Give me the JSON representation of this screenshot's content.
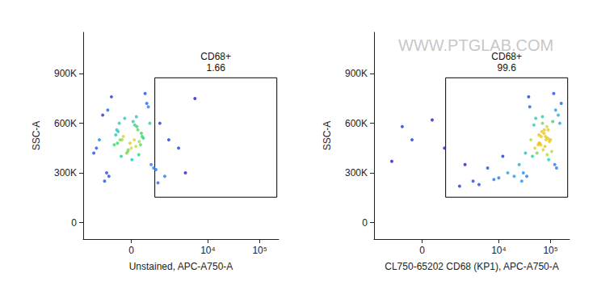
{
  "chart_data": [
    {
      "type": "scatter",
      "x_label": "Unstained, APC-A750-A",
      "y_label": "SSC-A",
      "grid": false,
      "xlim": [
        -2600,
        230000
      ],
      "ylim": [
        -100000,
        1150000
      ],
      "xticks": [
        0,
        {
          "value": 10000,
          "label": "10⁴"
        },
        {
          "value": 100000,
          "label": "10⁵"
        }
      ],
      "yticks": [
        0,
        {
          "value": 300000,
          "label": "300K"
        },
        {
          "value": 600000,
          "label": "600K"
        },
        {
          "value": 900000,
          "label": "900K"
        }
      ],
      "gate": {
        "label": "CD68+",
        "percent": 1.66,
        "x": [
          650,
          212000
        ],
        "y": [
          153000,
          875000
        ]
      },
      "x": [
        -300,
        -150,
        0,
        120,
        -250,
        50,
        -80,
        200,
        -400,
        100,
        -200,
        30,
        150,
        -350,
        -50,
        250,
        -120,
        80,
        -280,
        10,
        180,
        -180,
        60,
        -60,
        220,
        -320,
        140,
        -20,
        90,
        -230,
        -700,
        -900,
        400,
        500,
        -600,
        350,
        -1100,
        600,
        -500,
        450,
        -800,
        300,
        -1300,
        700,
        -650,
        900,
        1500,
        2500,
        5500,
        1200,
        -1500,
        3500,
        800
      ],
      "y": [
        480000,
        520000,
        450000,
        560000,
        600000,
        500000,
        420000,
        540000,
        470000,
        580000,
        400000,
        610000,
        490000,
        530000,
        440000,
        510000,
        630000,
        460000,
        550000,
        380000,
        470000,
        500000,
        590000,
        430000,
        520000,
        560000,
        410000,
        480000,
        640000,
        500000,
        300000,
        650000,
        700000,
        350000,
        280000,
        720000,
        500000,
        330000,
        760000,
        600000,
        250000,
        780000,
        450000,
        320000,
        680000,
        600000,
        500000,
        450000,
        750000,
        280000,
        420000,
        300000,
        240000
      ]
    },
    {
      "type": "scatter",
      "x_label": "CL750-65202 CD68 (KP1), APC-A750-A",
      "y_label": "SSC-A",
      "annotation": "WWW.PTGLAB.COM",
      "grid": false,
      "xlim": [
        -2600,
        230000
      ],
      "ylim": [
        -100000,
        1150000
      ],
      "xticks": [
        0,
        {
          "value": 10000,
          "label": "10⁴"
        },
        {
          "value": 100000,
          "label": "10⁵"
        }
      ],
      "yticks": [
        0,
        {
          "value": 300000,
          "label": "300K"
        },
        {
          "value": 600000,
          "label": "600K"
        },
        {
          "value": 900000,
          "label": "900K"
        }
      ],
      "gate": {
        "label": "CD68+",
        "percent": 99.6,
        "x": [
          650,
          212000
        ],
        "y": [
          153000,
          875000
        ]
      },
      "x": [
        60000,
        80000,
        50000,
        90000,
        70000,
        100000,
        55000,
        75000,
        65000,
        85000,
        45000,
        110000,
        95000,
        60000,
        72000,
        88000,
        52000,
        78000,
        68000,
        92000,
        58000,
        82000,
        48000,
        105000,
        66000,
        76000,
        86000,
        62000,
        70000,
        96000,
        30000,
        140000,
        40000,
        120000,
        35000,
        160000,
        42000,
        130000,
        38000,
        150000,
        25000,
        115000,
        28000,
        125000,
        33000,
        15000,
        8000,
        4000,
        2000,
        12000,
        20000,
        6000,
        1500,
        3000,
        10000,
        -500,
        200,
        -1000,
        600,
        -200
      ],
      "y": [
        480000,
        520000,
        450000,
        560000,
        600000,
        500000,
        420000,
        540000,
        470000,
        580000,
        400000,
        610000,
        490000,
        530000,
        440000,
        510000,
        630000,
        460000,
        550000,
        380000,
        470000,
        500000,
        590000,
        430000,
        520000,
        560000,
        410000,
        480000,
        640000,
        500000,
        300000,
        650000,
        700000,
        350000,
        280000,
        720000,
        500000,
        330000,
        760000,
        600000,
        350000,
        780000,
        250000,
        680000,
        420000,
        300000,
        260000,
        230000,
        350000,
        400000,
        280000,
        330000,
        220000,
        250000,
        270000,
        580000,
        620000,
        370000,
        450000,
        500000
      ]
    }
  ]
}
